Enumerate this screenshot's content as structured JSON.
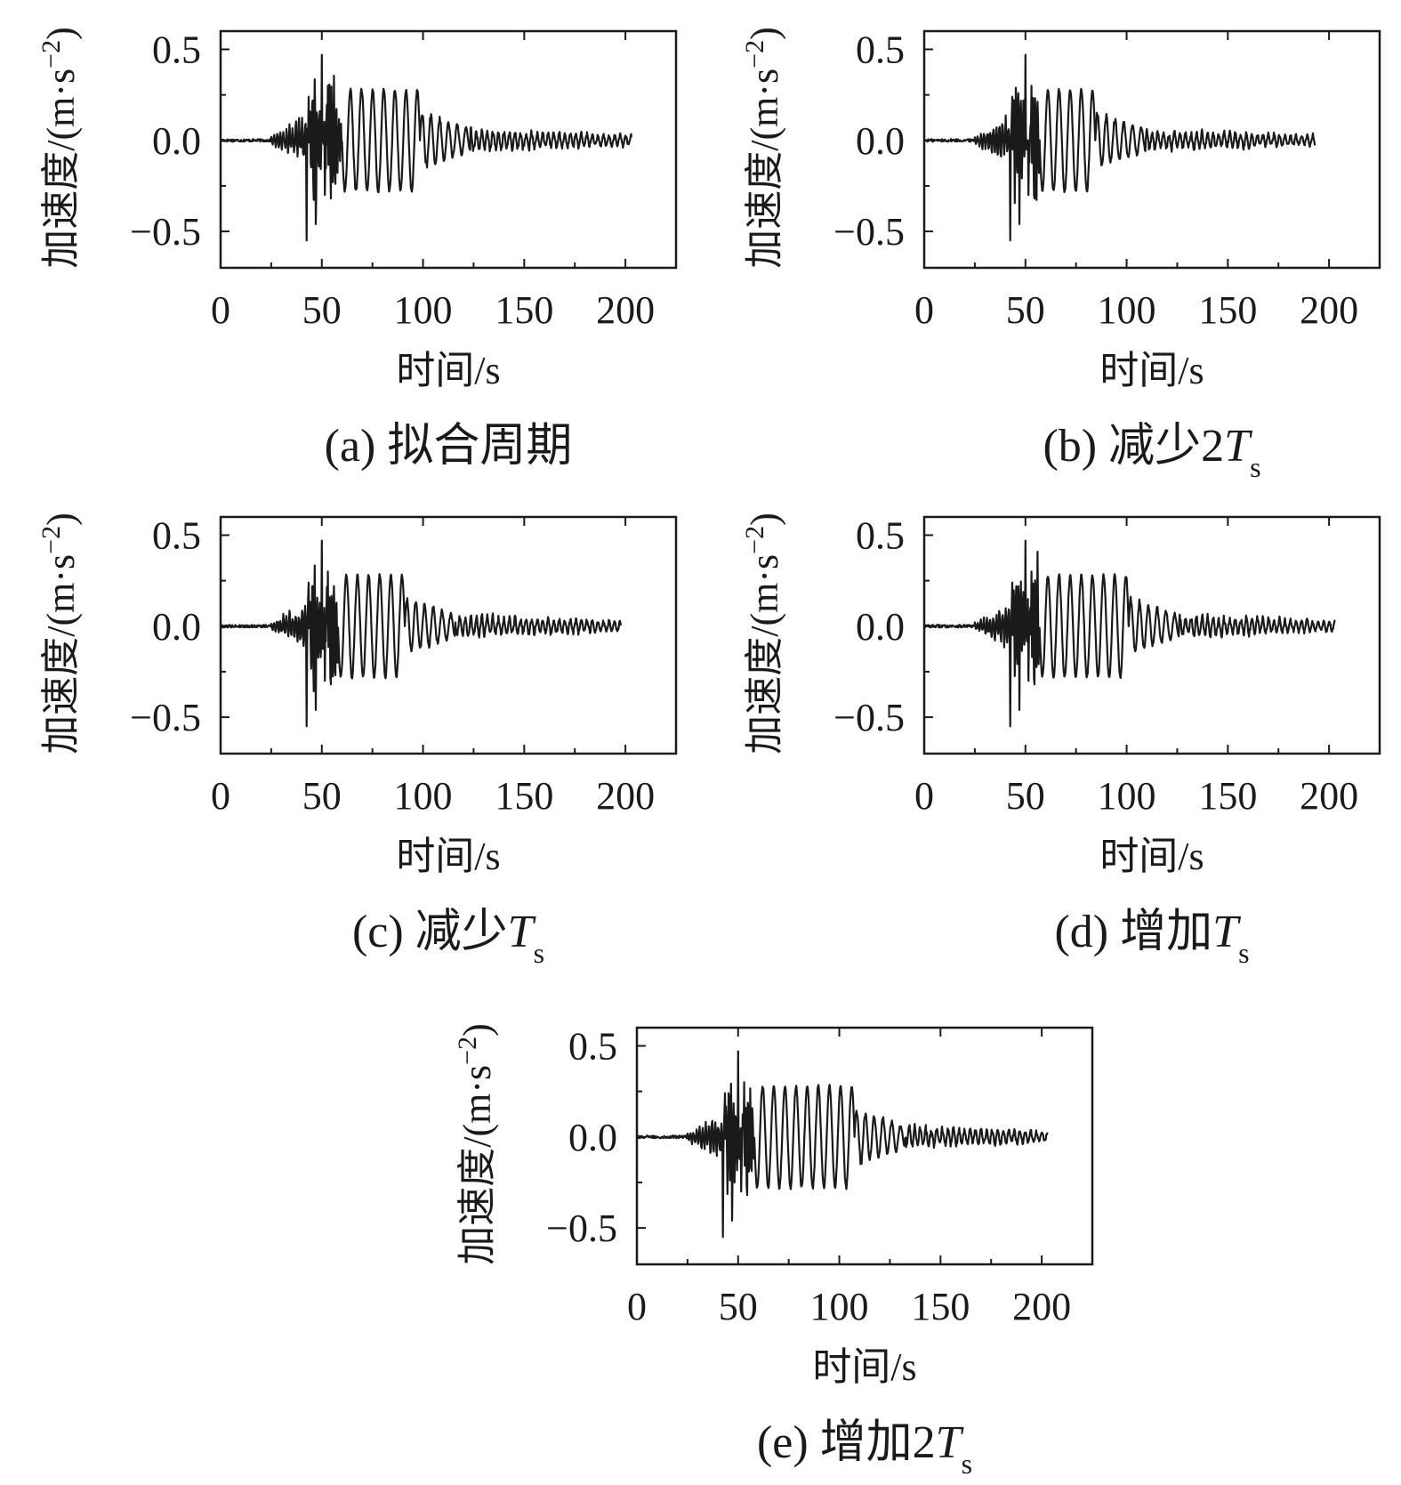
{
  "chart_data": [
    {
      "panel": "a",
      "type": "line",
      "caption_prefix": "(a) ",
      "caption_text": "拟合周期",
      "caption_sub": "",
      "xlabel": "时间/s",
      "ylabel_main": "加速度/(m·s",
      "ylabel_sup": "−2",
      "ylabel_close": ")",
      "xlim": [
        0,
        225
      ],
      "ylim": [
        -0.7,
        0.6
      ],
      "xticks": [
        0,
        50,
        100,
        150,
        200
      ],
      "xtick_labels": [
        "0",
        "50",
        "100",
        "150",
        "200"
      ],
      "yticks": [
        -0.5,
        0.0,
        0.5
      ],
      "ytick_labels": [
        "−0.5",
        "0.0",
        "0.5"
      ],
      "series": [
        {
          "duration": 203,
          "pulse_start": 50,
          "cycle_start": 60,
          "cycles": 7,
          "cycle_period": 5.5,
          "cycle_amp": 0.28,
          "peak_pos": 0.47,
          "peak_neg": -0.55,
          "tail_end_amp": 0.03,
          "grid": false
        }
      ]
    },
    {
      "panel": "b",
      "type": "line",
      "caption_prefix": "(b) ",
      "caption_text": "减少2",
      "caption_var": "T",
      "caption_sub": "s",
      "xlabel": "时间/s",
      "ylabel_main": "加速度/(m·s",
      "ylabel_sup": "−2",
      "ylabel_close": ")",
      "xlim": [
        0,
        225
      ],
      "ylim": [
        -0.7,
        0.6
      ],
      "xticks": [
        0,
        50,
        100,
        150,
        200
      ],
      "xtick_labels": [
        "0",
        "50",
        "100",
        "150",
        "200"
      ],
      "yticks": [
        -0.5,
        0.0,
        0.5
      ],
      "ytick_labels": [
        "−0.5",
        "0.0",
        "0.5"
      ],
      "series": [
        {
          "duration": 193,
          "pulse_start": 50,
          "cycle_start": 57,
          "cycles": 5,
          "cycle_period": 5.5,
          "cycle_amp": 0.28,
          "peak_pos": 0.47,
          "peak_neg": -0.55,
          "tail_end_amp": 0.03
        }
      ]
    },
    {
      "panel": "c",
      "type": "line",
      "caption_prefix": "(c) ",
      "caption_text": "减少",
      "caption_var": "T",
      "caption_sub": "s",
      "xlabel": "时间/s",
      "ylabel_main": "加速度/(m·s",
      "ylabel_sup": "−2",
      "ylabel_close": ")",
      "xlim": [
        0,
        225
      ],
      "ylim": [
        -0.7,
        0.6
      ],
      "xticks": [
        0,
        50,
        100,
        150,
        200
      ],
      "xtick_labels": [
        "0",
        "50",
        "100",
        "150",
        "200"
      ],
      "yticks": [
        -0.5,
        0.0,
        0.5
      ],
      "ytick_labels": [
        "−0.5",
        "0.0",
        "0.5"
      ],
      "series": [
        {
          "duration": 198,
          "pulse_start": 50,
          "cycle_start": 58,
          "cycles": 6,
          "cycle_period": 5.5,
          "cycle_amp": 0.28,
          "peak_pos": 0.47,
          "peak_neg": -0.55,
          "tail_end_amp": 0.03
        }
      ]
    },
    {
      "panel": "d",
      "type": "line",
      "caption_prefix": "(d) ",
      "caption_text": "增加",
      "caption_var": "T",
      "caption_sub": "s",
      "xlabel": "时间/s",
      "ylabel_main": "加速度/(m·s",
      "ylabel_sup": "−2",
      "ylabel_close": ")",
      "xlim": [
        0,
        225
      ],
      "ylim": [
        -0.7,
        0.6
      ],
      "xticks": [
        0,
        50,
        100,
        150,
        200
      ],
      "xtick_labels": [
        "0",
        "50",
        "100",
        "150",
        "200"
      ],
      "yticks": [
        -0.5,
        0.0,
        0.5
      ],
      "ytick_labels": [
        "−0.5",
        "0.0",
        "0.5"
      ],
      "series": [
        {
          "duration": 203,
          "pulse_start": 50,
          "cycle_start": 57,
          "cycles": 8,
          "cycle_period": 5.5,
          "cycle_amp": 0.28,
          "peak_pos": 0.47,
          "peak_neg": -0.55,
          "tail_end_amp": 0.03
        }
      ]
    },
    {
      "panel": "e",
      "type": "line",
      "caption_prefix": "(e) ",
      "caption_text": "增加2",
      "caption_var": "T",
      "caption_sub": "s",
      "xlabel": "时间/s",
      "ylabel_main": "加速度/(m·s",
      "ylabel_sup": "−2",
      "ylabel_close": ")",
      "xlim": [
        0,
        225
      ],
      "ylim": [
        -0.7,
        0.6
      ],
      "xticks": [
        0,
        50,
        100,
        150,
        200
      ],
      "xtick_labels": [
        "0",
        "50",
        "100",
        "150",
        "200"
      ],
      "yticks": [
        -0.5,
        0.0,
        0.5
      ],
      "ytick_labels": [
        "−0.5",
        "0.0",
        "0.5"
      ],
      "series": [
        {
          "duration": 203,
          "pulse_start": 50,
          "cycle_start": 58,
          "cycles": 9,
          "cycle_period": 5.5,
          "cycle_amp": 0.28,
          "peak_pos": 0.47,
          "peak_neg": -0.55,
          "tail_end_amp": 0.03
        }
      ]
    }
  ]
}
